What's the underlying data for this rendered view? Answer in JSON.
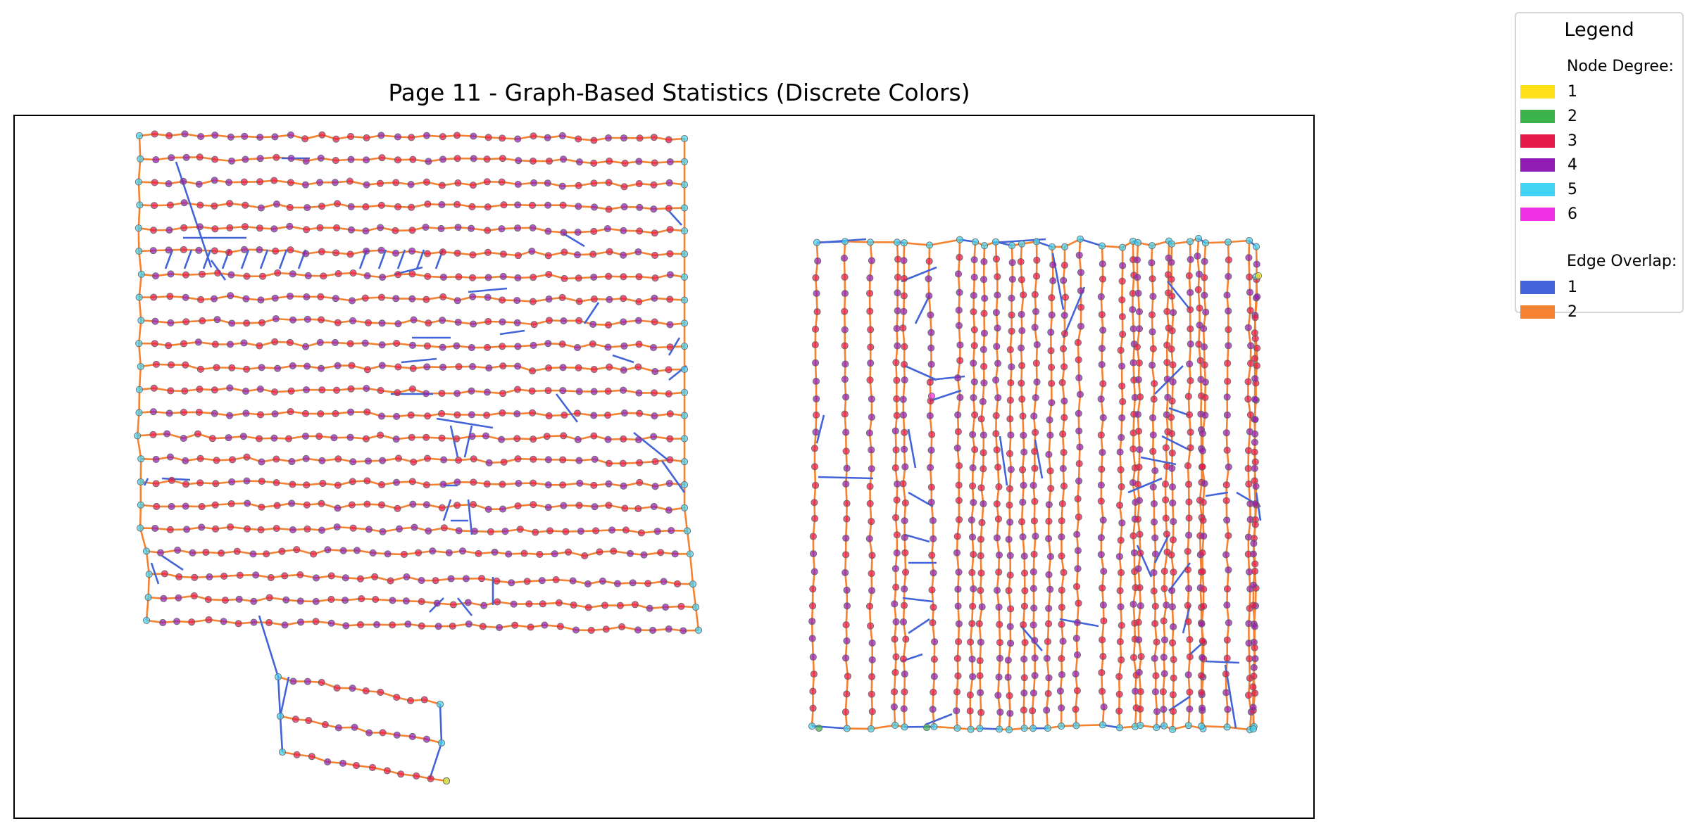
{
  "title": "Page 11 - Graph-Based Statistics (Discrete Colors)",
  "legend": {
    "title": "Legend",
    "node_heading": "Node Degree:",
    "node_items": [
      {
        "label": "1",
        "color": "#ffe119"
      },
      {
        "label": "2",
        "color": "#3cb44b"
      },
      {
        "label": "3",
        "color": "#e6194b"
      },
      {
        "label": "4",
        "color": "#911eb4"
      },
      {
        "label": "5",
        "color": "#42d4f4"
      },
      {
        "label": "6",
        "color": "#f032e6"
      }
    ],
    "edge_heading": "Edge Overlap:",
    "edge_items": [
      {
        "label": "1",
        "color": "#4363d8"
      },
      {
        "label": "2",
        "color": "#f58231"
      }
    ]
  }
}
